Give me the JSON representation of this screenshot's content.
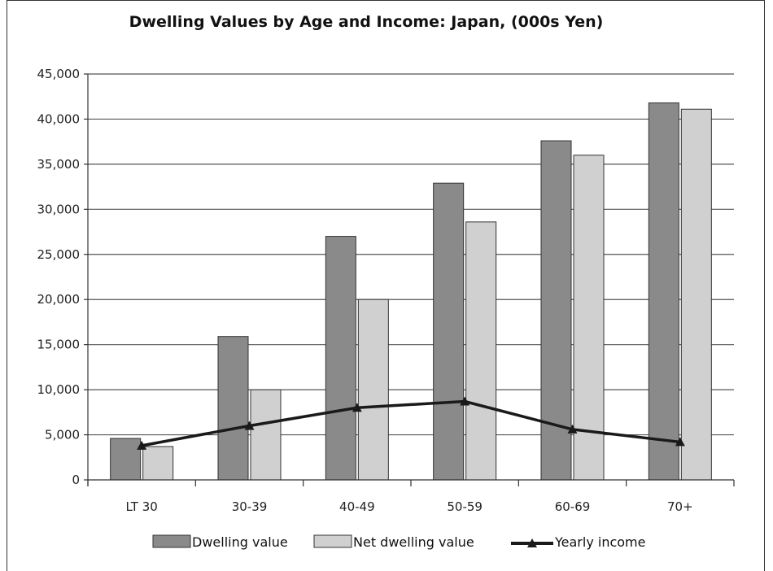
{
  "chart_data": {
    "type": "bar",
    "title": "Dwelling Values by Age and Income: Japan, (000s Yen)",
    "xlabel": "",
    "ylabel": "",
    "categories": [
      "LT 30",
      "30-39",
      "40-49",
      "50-59",
      "60-69",
      "70+"
    ],
    "ylim": [
      0,
      45000
    ],
    "yticks": [
      0,
      5000,
      10000,
      15000,
      20000,
      25000,
      30000,
      35000,
      40000,
      45000
    ],
    "ytick_labels": [
      "0",
      "5,000",
      "10,000",
      "15,000",
      "20,000",
      "25,000",
      "30,000",
      "35,000",
      "40,000",
      "45,000"
    ],
    "grid": "horizontal",
    "legend_position": "bottom",
    "series": [
      {
        "name": "Dwelling value",
        "kind": "bar",
        "color": "#8a8a8a",
        "values": [
          4600,
          15900,
          27000,
          32900,
          37600,
          41800
        ]
      },
      {
        "name": "Net dwelling value",
        "kind": "bar",
        "color": "#d0d0d0",
        "values": [
          3700,
          10000,
          20000,
          28600,
          36000,
          41100
        ]
      },
      {
        "name": "Yearly income",
        "kind": "line",
        "color": "#1a1a1a",
        "marker": "triangle",
        "values": [
          3800,
          6000,
          8000,
          8700,
          5600,
          4200
        ]
      }
    ]
  }
}
